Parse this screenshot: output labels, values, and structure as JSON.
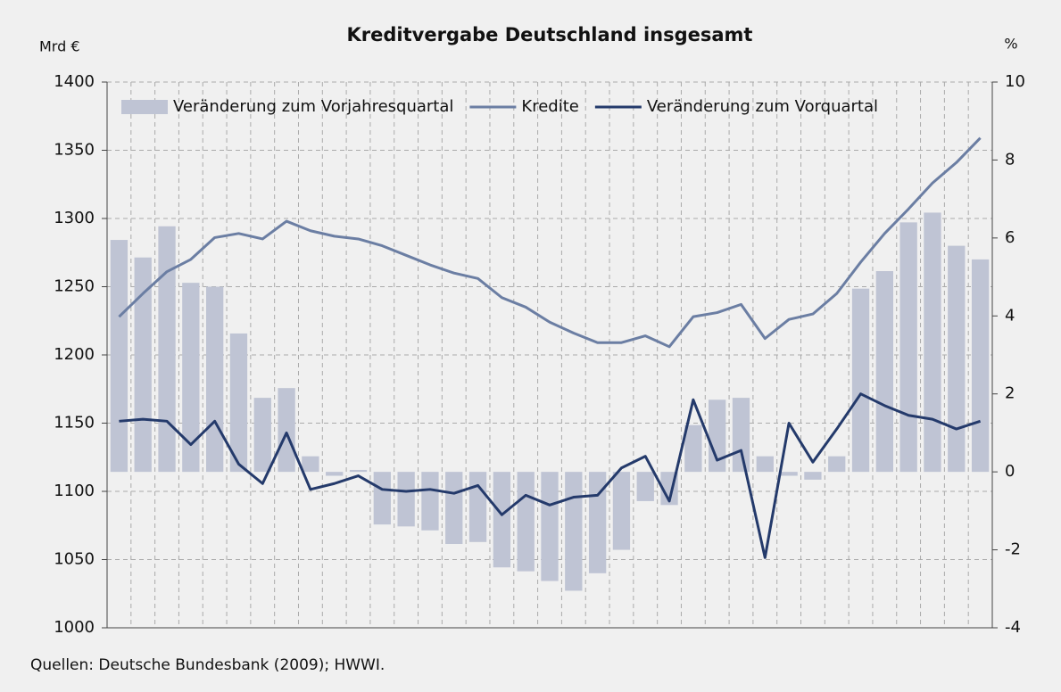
{
  "chart_data": {
    "type": "bar",
    "title": "Kreditvergabe Deutschland insgesamt",
    "ylabel": "Mrd €",
    "y2label": "%",
    "source": "Quellen: Deutsche Bundesbank (2009); HWWI.",
    "categories": [
      null,
      null,
      null,
      null,
      null,
      null,
      null,
      null,
      null,
      null,
      null,
      null,
      null,
      null,
      null,
      null,
      null,
      null,
      null,
      null,
      null,
      null,
      null,
      null,
      null,
      null,
      null,
      null,
      null,
      null,
      null,
      null,
      null,
      null,
      null,
      null,
      null
    ],
    "ylim": [
      1000,
      1400
    ],
    "yticks": [
      1000,
      1050,
      1100,
      1150,
      1200,
      1250,
      1300,
      1350,
      1400
    ],
    "y2lim": [
      -4,
      10
    ],
    "y2ticks": [
      -4,
      -2,
      0,
      2,
      4,
      6,
      8,
      10
    ],
    "grid": true,
    "legend": "top",
    "series": [
      {
        "name": "Veränderung zum Vorjahresquartal",
        "type": "bar",
        "axis": "y2",
        "color": "#bfc4d4",
        "values": [
          5.95,
          5.5,
          6.3,
          4.85,
          4.75,
          3.55,
          1.9,
          2.15,
          0.4,
          -0.1,
          0.05,
          -1.35,
          -1.4,
          -1.5,
          -1.85,
          -1.8,
          -2.45,
          -2.55,
          -2.8,
          -3.05,
          -2.6,
          -2.0,
          -0.75,
          -0.85,
          1.2,
          1.85,
          1.9,
          0.4,
          -0.1,
          -0.2,
          0.4,
          4.7,
          5.15,
          6.4,
          6.65,
          5.8,
          5.45
        ]
      },
      {
        "name": "Kredite",
        "type": "line",
        "axis": "y",
        "color": "#6b7ea3",
        "values": [
          1228,
          1245,
          1261,
          1270,
          1286,
          1289,
          1285,
          1298,
          1291,
          1287,
          1285,
          1280,
          1273,
          1266,
          1260,
          1256,
          1242,
          1235,
          1224,
          1216,
          1209,
          1209,
          1214,
          1206,
          1228,
          1231,
          1237,
          1212,
          1226,
          1230,
          1245,
          1268,
          1289,
          1307,
          1326,
          1341,
          1359
        ]
      },
      {
        "name": "Veränderung zum Vorquartal",
        "type": "line",
        "axis": "y2",
        "color": "#243a6b",
        "values": [
          1.3,
          1.35,
          1.3,
          0.7,
          1.3,
          0.2,
          -0.3,
          1.0,
          -0.45,
          -0.3,
          -0.1,
          -0.45,
          -0.5,
          -0.45,
          -0.55,
          -0.35,
          -1.1,
          -0.6,
          -0.85,
          -0.65,
          -0.6,
          0.1,
          0.4,
          -0.75,
          1.85,
          0.3,
          0.55,
          -2.2,
          1.25,
          0.25,
          1.1,
          2.0,
          1.7,
          1.45,
          1.35,
          1.1,
          1.3
        ]
      }
    ]
  }
}
